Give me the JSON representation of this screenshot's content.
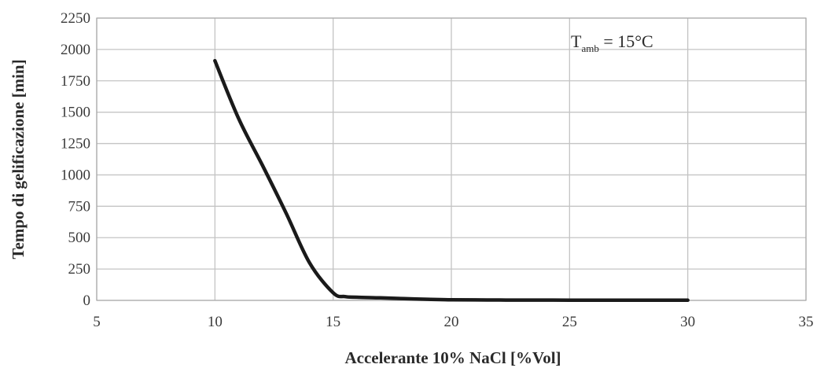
{
  "chart_data": {
    "type": "line",
    "title": "",
    "xlabel": "Accelerante 10% NaCl [%Vol]",
    "ylabel": "Tempo di gelificazione [min]",
    "xlim": [
      5,
      35
    ],
    "ylim": [
      0,
      2250
    ],
    "xticks": [
      5,
      10,
      15,
      20,
      25,
      30,
      35
    ],
    "yticks": [
      0,
      250,
      500,
      750,
      1000,
      1250,
      1500,
      1750,
      2000,
      2250
    ],
    "grid": true,
    "series": [
      {
        "x": [
          10,
          11,
          12,
          13,
          14,
          15,
          15.5,
          16,
          17,
          18,
          19,
          20,
          21,
          22,
          23,
          25,
          27,
          30
        ],
        "y": [
          1910,
          1450,
          1080,
          700,
          300,
          60,
          30,
          25,
          20,
          14,
          9,
          5,
          4,
          3,
          2.5,
          2,
          1.5,
          1
        ]
      }
    ],
    "annotation": {
      "main": "T",
      "sub": "amb",
      "rest": " = 15°C"
    },
    "colors": {
      "line": "#1a1a1a",
      "grid": "#c4c4c4"
    }
  }
}
